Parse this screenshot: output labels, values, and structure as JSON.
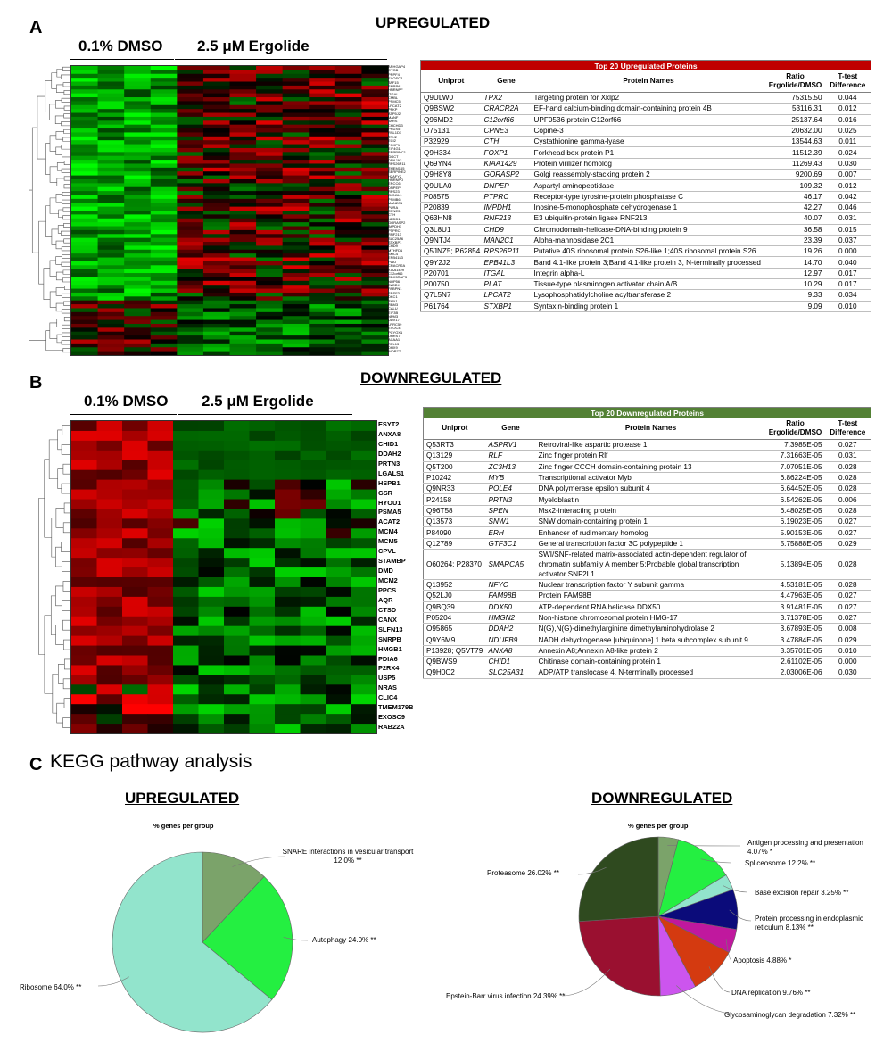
{
  "panels": {
    "a": "A",
    "b": "B",
    "c": "C"
  },
  "upregulated_title": "UPREGULATED",
  "downregulated_title": "DOWNREGULATED",
  "groups": {
    "dmso": "0.1% DMSO",
    "ergolide": "2.5 μM Ergolide"
  },
  "heatmap_b_genes": [
    "ESYT2",
    "ANXA8",
    "CHID1",
    "DDAH2",
    "PRTN3",
    "LGALS1",
    "HSPB1",
    "GSR",
    "HYOU1",
    "PSMA5",
    "ACAT2",
    "MCM4",
    "MCM5",
    "CPVL",
    "STAMBP",
    "DMD",
    "MCM2",
    "PPCS",
    "AQR",
    "CTSD",
    "CANX",
    "SLFN13",
    "SNRPB",
    "HMGB1",
    "PDIA6",
    "P2RX4",
    "USP5",
    "NRAS",
    "CLIC4",
    "TMEM179B",
    "EXOSC9",
    "RAB22A"
  ],
  "heatmap_a_genes": [
    "ARHGAP4",
    "CYGB",
    "PRPF4",
    "EXOSC4",
    "TAF15",
    "SNRPA1",
    "HNRNPF",
    "ITGAL",
    "CMBL",
    "PSMC5",
    "LPCAT2",
    "PFKP",
    "ATP5J2",
    "MANF",
    "TARS",
    "CHCHD3",
    "PRDX5",
    "RSL1D1",
    "TPX2",
    "ECI2",
    "FOXP1",
    "EIF4G1",
    "SERPINC1",
    "GGCT",
    "DNAJA2",
    "RPS26P11",
    "TMEM165",
    "SERPINE2",
    "H2AFY2",
    "HNRNPD",
    "ERCC6",
    "DNPEP",
    "RPS23",
    "GCN1L1",
    "PSMB6",
    "MAN2C1",
    "PURA",
    "CPNE3",
    "CTH",
    "NEDD1",
    "GORASP2",
    "IMPDH1",
    "PTPRC",
    "RNF213",
    "SLC25A6",
    "STXBP1",
    "CHD9",
    "MTHFD1",
    "SMC4",
    "EPB41L3",
    "PLAT",
    "CRACR2A",
    "KIAA1429",
    "C12orf66",
    "CDK5RAP3",
    "NOP56",
    "FKBP4",
    "PABPN1",
    "SRSF3",
    "DKC1",
    "TMX1",
    "RBM3",
    "CALU",
    "EIF3B",
    "NPM3",
    "DDX17",
    "LRRC59",
    "EXOC4",
    "PCYOX1",
    "DHRS7",
    "ACAA1",
    "RPL13",
    "DHX9",
    "WDR77"
  ],
  "up_table": {
    "title": "Top 20 Upregulated Proteins",
    "headers": [
      "Uniprot",
      "Gene",
      "Protein Names",
      "Ratio Ergolide/DMSO",
      "T-test Difference"
    ],
    "rows": [
      [
        "Q9ULW0",
        "TPX2",
        "Targeting protein for Xklp2",
        "75315.50",
        "0.044"
      ],
      [
        "Q9BSW2",
        "CRACR2A",
        "EF-hand calcium-binding domain-containing protein 4B",
        "53116.31",
        "0.012"
      ],
      [
        "Q96MD2",
        "C12orf66",
        "UPF0536 protein C12orf66",
        "25137.64",
        "0.016"
      ],
      [
        "O75131",
        "CPNE3",
        "Copine-3",
        "20632.00",
        "0.025"
      ],
      [
        "P32929",
        "CTH",
        "Cystathionine gamma-lyase",
        "13544.63",
        "0.011"
      ],
      [
        "Q9H334",
        "FOXP1",
        "Forkhead box protein P1",
        "11512.39",
        "0.024"
      ],
      [
        "Q69YN4",
        "KIAA1429",
        "Protein virilizer homolog",
        "11269.43",
        "0.030"
      ],
      [
        "Q9H8Y8",
        "GORASP2",
        "Golgi reassembly-stacking protein 2",
        "9200.69",
        "0.007"
      ],
      [
        "Q9ULA0",
        "DNPEP",
        "Aspartyl aminopeptidase",
        "109.32",
        "0.012"
      ],
      [
        "P08575",
        "PTPRC",
        "Receptor-type tyrosine-protein phosphatase C",
        "46.17",
        "0.042"
      ],
      [
        "P20839",
        "IMPDH1",
        "Inosine-5-monophosphate dehydrogenase 1",
        "42.27",
        "0.046"
      ],
      [
        "Q63HN8",
        "RNF213",
        "E3 ubiquitin-protein ligase RNF213",
        "40.07",
        "0.031"
      ],
      [
        "Q3L8U1",
        "CHD9",
        "Chromodomain-helicase-DNA-binding protein 9",
        "36.58",
        "0.015"
      ],
      [
        "Q9NTJ4",
        "MAN2C1",
        "Alpha-mannosidase 2C1",
        "23.39",
        "0.037"
      ],
      [
        "Q5JNZ5; P62854",
        "RPS26P11",
        "Putative 40S ribosomal protein S26-like 1;40S ribosomal protein S26",
        "19.26",
        "0.000"
      ],
      [
        "Q9Y2J2",
        "EPB41L3",
        "Band 4.1-like protein 3;Band 4.1-like protein 3, N-terminally processed",
        "14.70",
        "0.040"
      ],
      [
        "P20701",
        "ITGAL",
        "Integrin alpha-L",
        "12.97",
        "0.017"
      ],
      [
        "P00750",
        "PLAT",
        "Tissue-type plasminogen activator chain A/B",
        "10.29",
        "0.017"
      ],
      [
        "Q7L5N7",
        "LPCAT2",
        "Lysophosphatidylcholine acyltransferase 2",
        "9.33",
        "0.034"
      ],
      [
        "P61764",
        "STXBP1",
        "Syntaxin-binding protein 1",
        "9.09",
        "0.010"
      ]
    ]
  },
  "down_table": {
    "title": "Top 20 Downregulated Proteins",
    "headers": [
      "Uniprot",
      "Gene",
      "Protein Names",
      "Ratio Ergolide/DMSO",
      "T-test Difference"
    ],
    "rows": [
      [
        "Q53RT3",
        "ASPRV1",
        "Retroviral-like aspartic protease 1",
        "7.3985E-05",
        "0.027"
      ],
      [
        "Q13129",
        "RLF",
        "Zinc finger protein Rlf",
        "7.31663E-05",
        "0.031"
      ],
      [
        "Q5T200",
        "ZC3H13",
        "Zinc finger CCCH domain-containing protein 13",
        "7.07051E-05",
        "0.028"
      ],
      [
        "P10242",
        "MYB",
        "Transcriptional activator Myb",
        "6.86224E-05",
        "0.028"
      ],
      [
        "Q9NR33",
        "POLE4",
        "DNA polymerase epsilon subunit 4",
        "6.64452E-05",
        "0.028"
      ],
      [
        "P24158",
        "PRTN3",
        "Myeloblastin",
        "6.54262E-05",
        "0.006"
      ],
      [
        "Q96T58",
        "SPEN",
        "Msx2-interacting protein",
        "6.48025E-05",
        "0.028"
      ],
      [
        "Q13573",
        "SNW1",
        "SNW domain-containing protein 1",
        "6.19023E-05",
        "0.027"
      ],
      [
        "P84090",
        "ERH",
        "Enhancer of rudimentary homolog",
        "5.90153E-05",
        "0.027"
      ],
      [
        "Q12789",
        "GTF3C1",
        "General transcription factor 3C polypeptide 1",
        "5.75888E-05",
        "0.029"
      ],
      [
        "O60264; P28370",
        "SMARCA5",
        "SWI/SNF-related matrix-associated actin-dependent regulator of chromatin subfamily A member 5;Probable global transcription activator SNF2L1",
        "5.13894E-05",
        "0.028"
      ],
      [
        "Q13952",
        "NFYC",
        "Nuclear transcription factor Y subunit gamma",
        "4.53181E-05",
        "0.028"
      ],
      [
        "Q52LJ0",
        "FAM98B",
        "Protein FAM98B",
        "4.47963E-05",
        "0.027"
      ],
      [
        "Q9BQ39",
        "DDX50",
        "ATP-dependent RNA helicase DDX50",
        "3.91481E-05",
        "0.027"
      ],
      [
        "P05204",
        "HMGN2",
        "Non-histone chromosomal protein HMG-17",
        "3.71378E-05",
        "0.027"
      ],
      [
        "O95865",
        "DDAH2",
        "N(G),N(G)-dimethylarginine dimethylaminohydrolase 2",
        "3.67893E-05",
        "0.008"
      ],
      [
        "Q9Y6M9",
        "NDUFB9",
        "NADH dehydrogenase [ubiquinone] 1 beta subcomplex subunit 9",
        "3.47884E-05",
        "0.029"
      ],
      [
        "P13928; Q5VT79",
        "ANXA8",
        "Annexin A8;Annexin A8-like protein 2",
        "3.35701E-05",
        "0.010"
      ],
      [
        "Q9BWS9",
        "CHID1",
        "Chitinase domain-containing protein 1",
        "2.61102E-05",
        "0.000"
      ],
      [
        "Q9H0C2",
        "SLC25A31",
        "ADP/ATP translocase 4, N-terminally processed",
        "2.03006E-06",
        "0.030"
      ]
    ]
  },
  "kegg_title": "KEGG pathway analysis",
  "pie_subtitle": "% genes per group",
  "chart_data": [
    {
      "type": "pie",
      "title": "UPREGULATED",
      "subtitle": "% genes per group",
      "categories": [
        "SNARE interactions in vesicular transport",
        "Autophagy",
        "Ribosome"
      ],
      "values": [
        12.0,
        24.0,
        64.0
      ],
      "labels": [
        "SNARE interactions in vesicular transport 12.0% **",
        "Autophagy 24.0% **",
        "Ribosome 64.0% **"
      ],
      "colors": [
        "#7ba36a",
        "#24ef41",
        "#92e4cc"
      ]
    },
    {
      "type": "pie",
      "title": "DOWNREGULATED",
      "subtitle": "% genes per group",
      "categories": [
        "Antigen processing and presentation",
        "Spliceosome",
        "Base excision repair",
        "Protein processing in endoplasmic reticulum",
        "Apoptosis",
        "DNA replication",
        "Glycosaminoglycan degradation",
        "Epstein-Barr virus infection",
        "Proteasome"
      ],
      "values": [
        4.07,
        12.2,
        3.25,
        8.13,
        4.88,
        9.76,
        7.32,
        24.39,
        26.02
      ],
      "labels": [
        "Antigen processing and presentation 4.07% *",
        "Spliceosome 12.2% **",
        "Base excision repair 3.25% **",
        "Protein processing in endoplasmic reticulum 8.13% **",
        "Apoptosis 4.88% *",
        "DNA replication 9.76% **",
        "Glycosaminoglycan degradation 7.32% **",
        "Epstein-Barr virus infection 24.39% **",
        "Proteasome 26.02% **"
      ],
      "colors": [
        "#7ba36a",
        "#24ef41",
        "#92e4cc",
        "#0b0b7a",
        "#c0189e",
        "#d43a10",
        "#cc55ee",
        "#9a1030",
        "#2f4a1f"
      ]
    }
  ]
}
